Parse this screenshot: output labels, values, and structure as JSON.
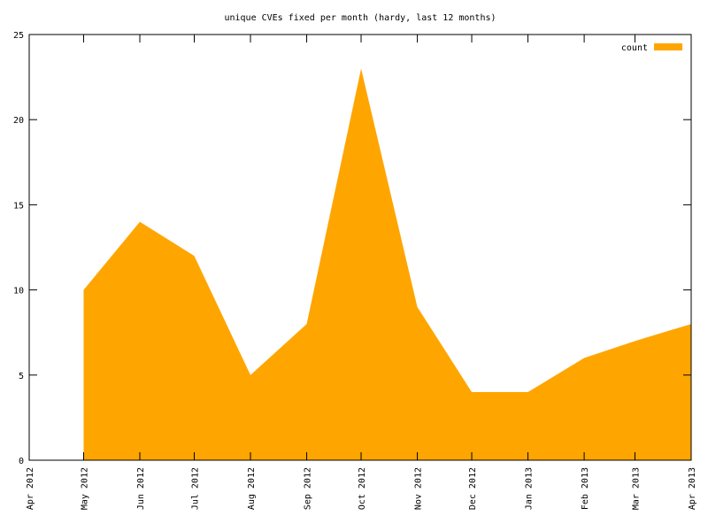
{
  "chart_data": {
    "type": "area",
    "title": "unique CVEs fixed per month (hardy, last 12 months)",
    "x": [
      "May 2012",
      "Jun 2012",
      "Jul 2012",
      "Aug 2012",
      "Sep 2012",
      "Oct 2012",
      "Nov 2012",
      "Dec 2012",
      "Jan 2013",
      "Feb 2013",
      "Mar 2013",
      "Apr 2013"
    ],
    "series": [
      {
        "name": "count",
        "color": "#ffa500",
        "values": [
          10,
          14,
          12,
          5,
          8,
          23,
          9,
          4,
          4,
          6,
          7,
          8
        ]
      }
    ],
    "xlim": [
      "Apr 2012",
      "Apr 2013"
    ],
    "xticks": [
      "Apr 2012",
      "May 2012",
      "Jun 2012",
      "Jul 2012",
      "Aug 2012",
      "Sep 2012",
      "Oct 2012",
      "Nov 2012",
      "Dec 2012",
      "Jan 2013",
      "Feb 2013",
      "Mar 2013",
      "Apr 2013"
    ],
    "ylim": [
      0,
      25
    ],
    "yticks": [
      0,
      5,
      10,
      15,
      20,
      25
    ],
    "legend": "top-right"
  }
}
